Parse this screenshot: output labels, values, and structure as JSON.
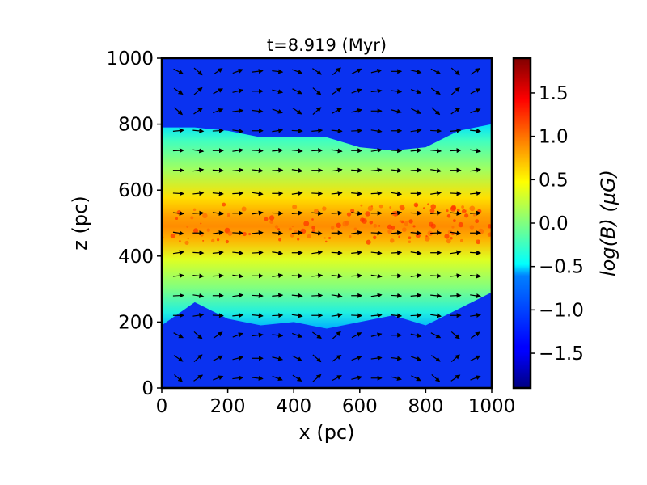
{
  "chart_data": {
    "type": "heatmap",
    "title": "t=8.919 (Myr)",
    "xlabel": "x (pc)",
    "ylabel": "z (pc)",
    "xlim": [
      0,
      1000
    ],
    "ylim": [
      0,
      1000
    ],
    "x_ticks": [
      "0",
      "200",
      "400",
      "600",
      "800",
      "1000"
    ],
    "y_ticks": [
      "0",
      "200",
      "400",
      "600",
      "800",
      "1000"
    ],
    "colorbar": {
      "label": "log(B) (μG)",
      "colormap": "jet",
      "range": [
        -1.9,
        1.9
      ],
      "ticks": [
        "−1.5",
        "−1.0",
        "−0.5",
        "0.0",
        "0.5",
        "1.0",
        "1.5"
      ],
      "tick_values": [
        -1.5,
        -1.0,
        -0.5,
        0.0,
        0.5,
        1.0,
        1.5
      ]
    },
    "field_summary": {
      "midplane_z": 500,
      "midplane_logB": 1.0,
      "halo_logB": -1.4,
      "disk_top_z": [
        790,
        790,
        780,
        760,
        760,
        760,
        730,
        720,
        730,
        780,
        800
      ],
      "disk_bottom_z": [
        190,
        260,
        210,
        190,
        200,
        180,
        200,
        220,
        190,
        240,
        290
      ],
      "disk_edge_x": [
        0,
        100,
        200,
        300,
        400,
        500,
        600,
        700,
        800,
        900,
        1000
      ]
    },
    "vector_field": {
      "x_positions": [
        50,
        110,
        170,
        230,
        290,
        350,
        410,
        470,
        530,
        590,
        650,
        710,
        770,
        830,
        890,
        950
      ],
      "z_positions": [
        30,
        90,
        160,
        220,
        280,
        340,
        410,
        470,
        530,
        590,
        660,
        720,
        780,
        840,
        900,
        960
      ],
      "dominant_direction": "+x"
    }
  }
}
